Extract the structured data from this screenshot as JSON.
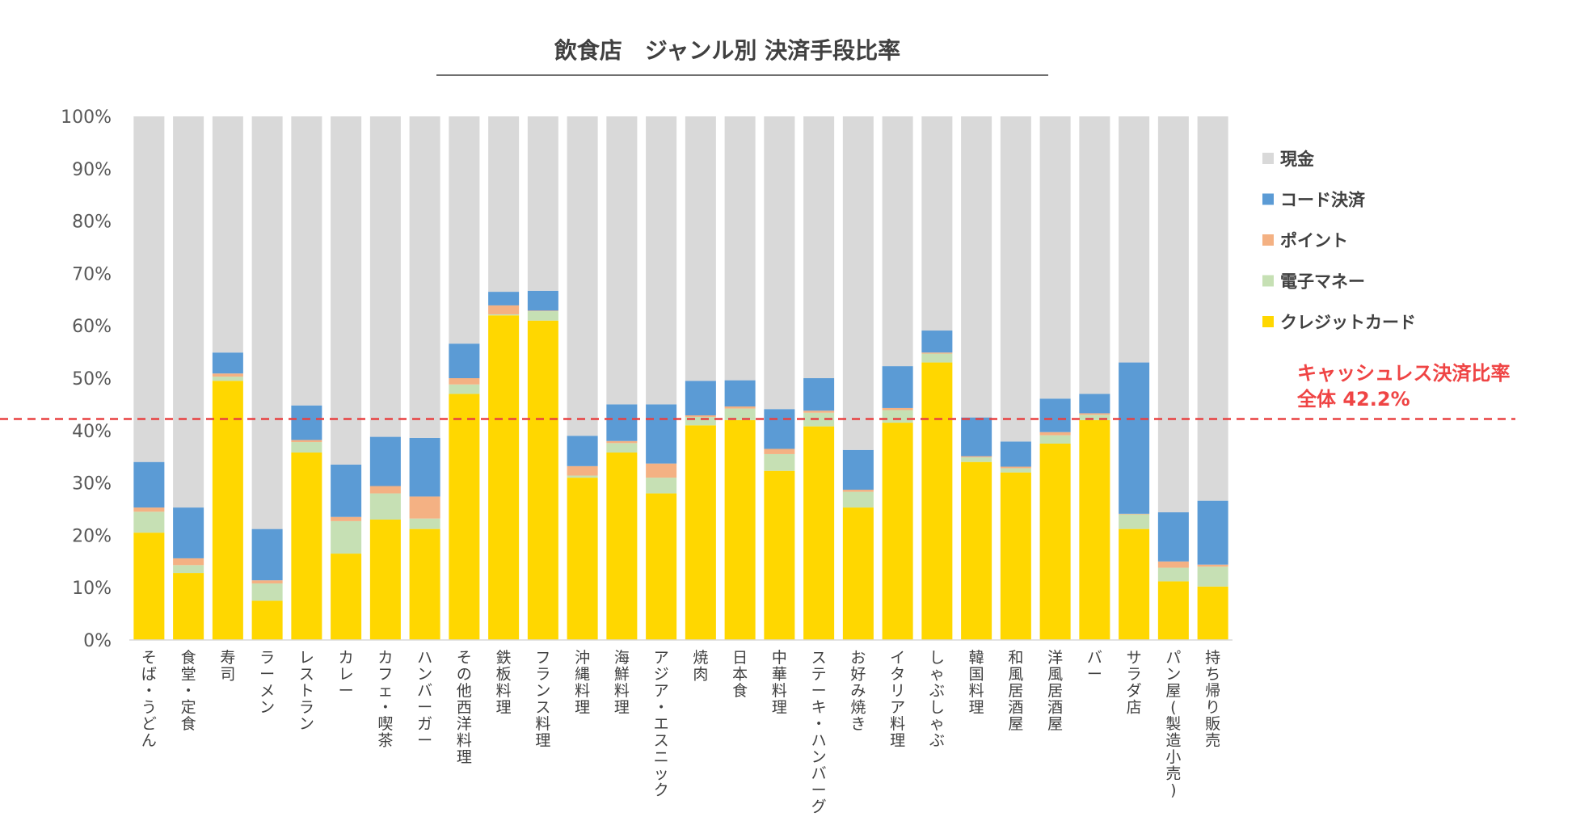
{
  "chart_data": {
    "type": "bar",
    "stacked": true,
    "title": "飲食店　ジャンル別 決済手段比率",
    "xlabel": "",
    "ylabel": "",
    "ylim": [
      0,
      100
    ],
    "ytick_labels": [
      "0%",
      "10%",
      "20%",
      "30%",
      "40%",
      "50%",
      "60%",
      "70%",
      "80%",
      "90%",
      "100%"
    ],
    "grid": false,
    "legend_position": "right",
    "categories": [
      "そば・うどん",
      "食堂・定食",
      "寿司",
      "ラーメン",
      "レストラン",
      "カレー",
      "カフェ・喫茶",
      "ハンバーガー",
      "その他西洋料理",
      "鉄板料理",
      "フランス料理",
      "沖縄料理",
      "海鮮料理",
      "アジア・エスニック",
      "焼肉",
      "日本食",
      "中華料理",
      "ステーキ・ハンバーグ",
      "お好み焼き",
      "イタリア料理",
      "しゃぶしゃぶ",
      "韓国料理",
      "和風居酒屋",
      "洋風居酒屋",
      "バー",
      "サラダ店",
      "パン屋(製造小売)",
      "持ち帰り販売"
    ],
    "series": [
      {
        "name": "クレジットカード",
        "color": "#FFD700",
        "values": [
          20.5,
          12.8,
          49.5,
          7.5,
          35.8,
          16.5,
          23.0,
          21.2,
          47.0,
          62.0,
          61.0,
          31.0,
          35.8,
          28.0,
          41.0,
          42.0,
          32.3,
          40.8,
          25.3,
          41.5,
          53.0,
          34.0,
          32.0,
          37.5,
          42.0,
          21.2,
          11.2,
          10.2
        ]
      },
      {
        "name": "電子マネー",
        "color": "#C6E0B4",
        "values": [
          4.0,
          1.5,
          0.8,
          3.3,
          2.0,
          6.2,
          5.0,
          2.0,
          1.8,
          0.2,
          1.8,
          0.4,
          1.8,
          3.0,
          1.6,
          2.2,
          3.2,
          2.6,
          3.0,
          2.4,
          1.7,
          0.9,
          0.8,
          1.6,
          1.0,
          2.8,
          2.6,
          3.8
        ]
      },
      {
        "name": "ポイント",
        "color": "#F4B183",
        "values": [
          0.8,
          1.3,
          0.6,
          0.6,
          0.4,
          0.8,
          1.4,
          4.2,
          1.2,
          1.7,
          0.1,
          1.8,
          0.4,
          2.7,
          0.3,
          0.4,
          1.0,
          0.4,
          0.4,
          0.4,
          0.2,
          0.2,
          0.3,
          0.6,
          0.3,
          0.1,
          1.2,
          0.4
        ]
      },
      {
        "name": "コード決済",
        "color": "#5B9BD5",
        "values": [
          8.7,
          9.7,
          4.0,
          9.8,
          6.6,
          10.0,
          9.4,
          11.2,
          6.6,
          2.6,
          3.8,
          5.8,
          7.0,
          11.3,
          6.6,
          5.0,
          7.6,
          6.2,
          7.6,
          8.0,
          4.2,
          7.4,
          4.8,
          6.4,
          3.7,
          28.9,
          9.4,
          12.2
        ]
      },
      {
        "name": "現金",
        "color": "#D9D9D9",
        "values": [
          66.0,
          74.7,
          45.1,
          78.8,
          55.2,
          66.5,
          61.2,
          61.4,
          43.4,
          33.5,
          33.3,
          61.0,
          55.0,
          55.0,
          50.5,
          50.4,
          55.9,
          50.0,
          63.7,
          47.7,
          40.9,
          57.5,
          62.1,
          53.9,
          53.0,
          47.0,
          75.6,
          73.4
        ]
      }
    ],
    "legend_order": [
      "現金",
      "コード決済",
      "ポイント",
      "電子マネー",
      "クレジットカード"
    ],
    "reference_line": {
      "value": 42.2,
      "label_line1": "キャッシュレス決済比率",
      "label_line2": "全体 42.2%",
      "color": "#E84040"
    }
  }
}
